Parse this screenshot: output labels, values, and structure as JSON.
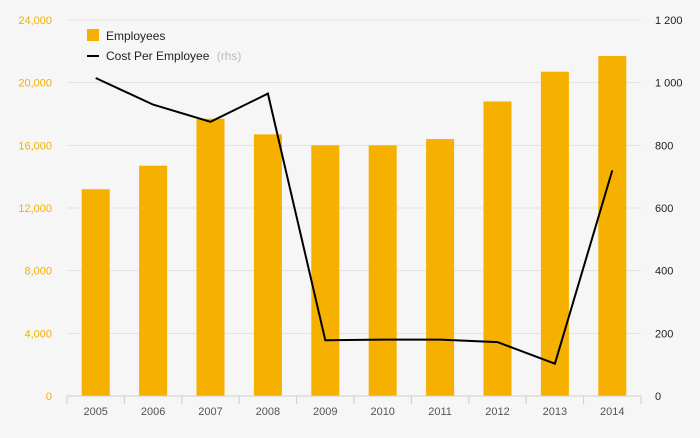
{
  "chart_data": {
    "type": "bar",
    "title": "",
    "xlabel": "",
    "ylabel": "",
    "categories": [
      "2005",
      "2006",
      "2007",
      "2008",
      "2009",
      "2010",
      "2011",
      "2012",
      "2013",
      "2014"
    ],
    "series": [
      {
        "name": "Employees",
        "type": "bar",
        "axis": "left",
        "color": "#f5b000",
        "values": [
          13200,
          14700,
          17700,
          16700,
          16000,
          16000,
          16400,
          18800,
          20700,
          21700
        ]
      },
      {
        "name": "Cost Per Employee",
        "name_suffix": "(rhs)",
        "type": "line",
        "axis": "right",
        "color": "#000000",
        "values": [
          1015,
          930,
          875,
          965,
          178,
          180,
          180,
          172,
          103,
          720
        ]
      }
    ],
    "left_axis": {
      "ylim": [
        0,
        24000
      ],
      "ticks": [
        0,
        4000,
        8000,
        12000,
        16000,
        20000,
        24000
      ],
      "tick_labels": [
        "0",
        "4,000",
        "8,000",
        "12,000",
        "16,000",
        "20,000",
        "24,000"
      ],
      "label_color": "#f5b000"
    },
    "right_axis": {
      "ylim": [
        0,
        1200
      ],
      "ticks": [
        0,
        200,
        400,
        600,
        800,
        1000,
        1200
      ],
      "tick_labels": [
        "0",
        "200",
        "400",
        "600",
        "800",
        "1 000",
        "1 200"
      ],
      "label_color": "#222222"
    },
    "grid": true,
    "legend": "top-left"
  }
}
